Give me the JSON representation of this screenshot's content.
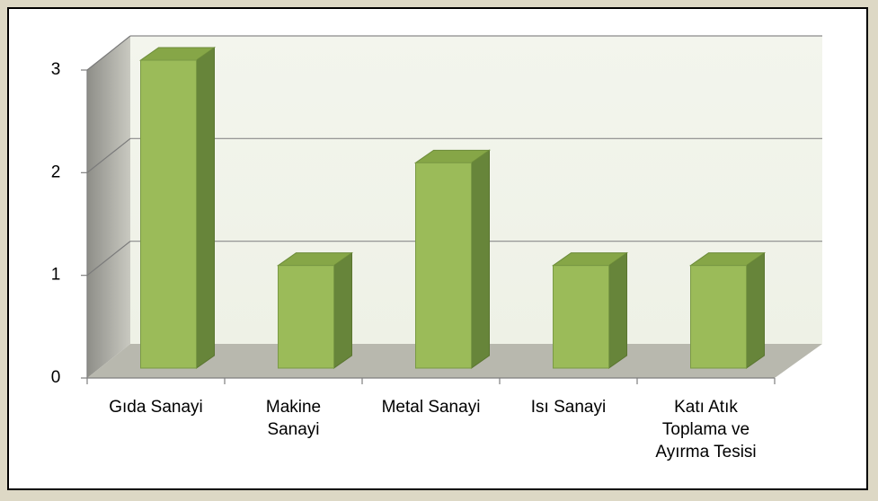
{
  "chart_data": {
    "type": "bar3d",
    "categories": [
      "Gıda Sanayi",
      "Makine\nSanayi",
      "Metal Sanayi",
      "Isı Sanayi",
      "Katı Atık\nToplama ve\nAyırma Tesisi"
    ],
    "values": [
      3,
      1,
      2,
      1,
      1
    ],
    "color": "#9bbb59",
    "ylim": [
      0,
      3
    ],
    "yticks": [
      0,
      1,
      2,
      3
    ],
    "grid": true
  }
}
